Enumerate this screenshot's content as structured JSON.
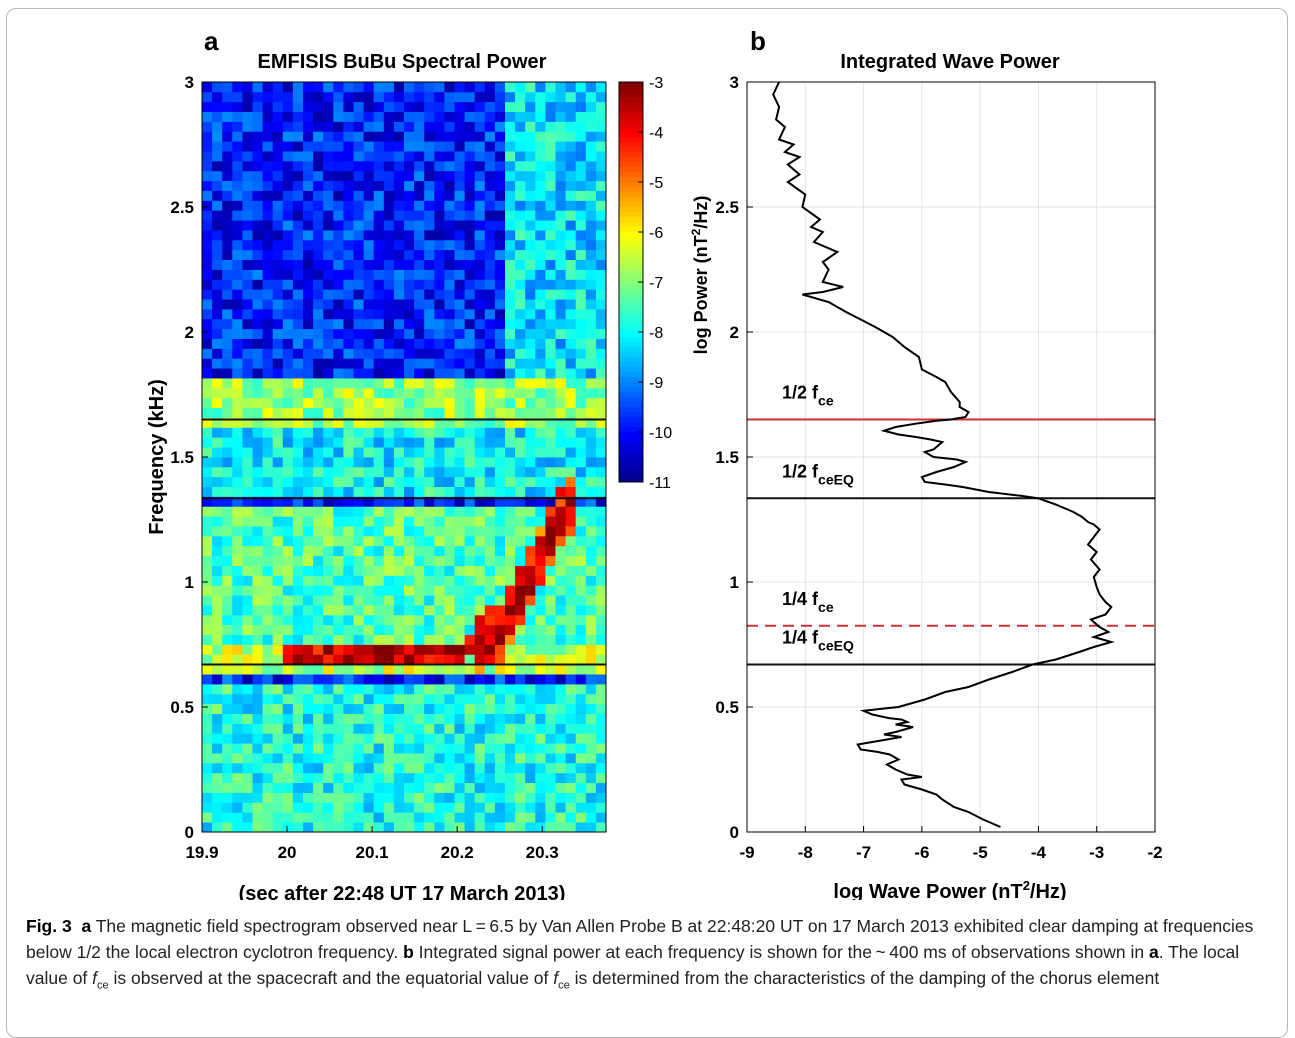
{
  "figure": {
    "panel_a_letter": "a",
    "panel_b_letter": "b"
  },
  "chart_data": [
    {
      "type": "heatmap",
      "title": "EMFISIS BuBu Spectral Power",
      "xlabel": "(sec after 22:48 UT  17 March 2013)",
      "ylabel": "Frequency (kHz)",
      "xlim": [
        19.9,
        20.375
      ],
      "ylim": [
        0,
        3
      ],
      "x_ticks": [
        "19.9",
        "20",
        "20.1",
        "20.2",
        "20.3"
      ],
      "y_ticks": [
        "0",
        "0.5",
        "1",
        "1.5",
        "2",
        "2.5",
        "3"
      ],
      "colorbar": {
        "range": [
          -11,
          -3
        ],
        "ticks": [
          "-3",
          "-4",
          "-5",
          "-6",
          "-7",
          "-8",
          "-9",
          "-10",
          "-11"
        ],
        "colormap": "jet"
      },
      "horizontal_lines_khz": [
        1.65,
        1.335,
        0.67
      ],
      "horizontal_line_color": "#111111",
      "features": [
        {
          "type": "background",
          "freq_khz": [
            1.8,
            3.0
          ],
          "log_power": -9.8
        },
        {
          "type": "band",
          "freq_khz": [
            1.6,
            1.9
          ],
          "log_power": -6.8
        },
        {
          "type": "band",
          "freq_khz": [
            1.35,
            1.6
          ],
          "log_power": -8.0
        },
        {
          "type": "band",
          "freq_khz": [
            0.75,
            1.3
          ],
          "log_power": -7.4
        },
        {
          "type": "band",
          "freq_khz": [
            0.62,
            0.75
          ],
          "log_power": -6.5
        },
        {
          "type": "band",
          "freq_khz": [
            0.0,
            0.6
          ],
          "log_power": -7.8
        },
        {
          "type": "chorus_element",
          "log_power": -3.3,
          "path": [
            [
              20.0,
              0.7
            ],
            [
              20.2,
              0.72
            ],
            [
              20.25,
              0.8
            ],
            [
              20.28,
              0.98
            ],
            [
              20.31,
              1.2
            ],
            [
              20.34,
              1.35
            ]
          ]
        }
      ]
    },
    {
      "type": "line",
      "title": "Integrated Wave Power",
      "xlabel": "log Wave Power (nT",
      "xlabel_sup": "2",
      "xlabel_end": "/Hz)",
      "ylabel": "log Power (nT",
      "ylabel_sup": "2",
      "ylabel_end": "/Hz)",
      "xlim": [
        -9,
        -2
      ],
      "ylim": [
        0,
        3
      ],
      "x_ticks": [
        "-9",
        "-8",
        "-7",
        "-6",
        "-5",
        "-4",
        "-3",
        "-2"
      ],
      "y_ticks": [
        "0",
        "0.5",
        "1",
        "1.5",
        "2",
        "2.5",
        "3"
      ],
      "grid": true,
      "series": [
        {
          "color": "#000000",
          "points": [
            [
              -8.45,
              3.0
            ],
            [
              -8.55,
              2.95
            ],
            [
              -8.45,
              2.9
            ],
            [
              -8.5,
              2.85
            ],
            [
              -8.35,
              2.82
            ],
            [
              -8.45,
              2.77
            ],
            [
              -8.2,
              2.75
            ],
            [
              -8.35,
              2.72
            ],
            [
              -8.1,
              2.7
            ],
            [
              -8.3,
              2.67
            ],
            [
              -8.1,
              2.63
            ],
            [
              -8.3,
              2.6
            ],
            [
              -8.0,
              2.55
            ],
            [
              -8.05,
              2.5
            ],
            [
              -7.75,
              2.45
            ],
            [
              -7.9,
              2.42
            ],
            [
              -7.7,
              2.4
            ],
            [
              -7.85,
              2.36
            ],
            [
              -7.45,
              2.32
            ],
            [
              -7.7,
              2.28
            ],
            [
              -7.6,
              2.25
            ],
            [
              -7.7,
              2.2
            ],
            [
              -7.35,
              2.18
            ],
            [
              -7.7,
              2.16
            ],
            [
              -8.05,
              2.15
            ],
            [
              -7.6,
              2.12
            ],
            [
              -7.3,
              2.08
            ],
            [
              -7.05,
              2.05
            ],
            [
              -6.8,
              2.02
            ],
            [
              -6.5,
              1.98
            ],
            [
              -6.3,
              1.94
            ],
            [
              -6.05,
              1.9
            ],
            [
              -6.0,
              1.85
            ],
            [
              -5.75,
              1.82
            ],
            [
              -5.6,
              1.8
            ],
            [
              -5.5,
              1.76
            ],
            [
              -5.35,
              1.72
            ],
            [
              -5.35,
              1.7
            ],
            [
              -5.2,
              1.68
            ],
            [
              -5.25,
              1.66
            ],
            [
              -5.5,
              1.65
            ],
            [
              -5.75,
              1.645
            ],
            [
              -6.05,
              1.635
            ],
            [
              -6.45,
              1.62
            ],
            [
              -6.65,
              1.605
            ],
            [
              -6.4,
              1.59
            ],
            [
              -6.1,
              1.58
            ],
            [
              -5.85,
              1.57
            ],
            [
              -5.65,
              1.56
            ],
            [
              -5.8,
              1.53
            ],
            [
              -5.95,
              1.52
            ],
            [
              -5.8,
              1.5
            ],
            [
              -5.4,
              1.49
            ],
            [
              -5.25,
              1.48
            ],
            [
              -5.45,
              1.46
            ],
            [
              -5.75,
              1.44
            ],
            [
              -6.0,
              1.42
            ],
            [
              -5.95,
              1.4
            ],
            [
              -5.6,
              1.39
            ],
            [
              -5.3,
              1.38
            ],
            [
              -4.85,
              1.36
            ],
            [
              -4.3,
              1.345
            ],
            [
              -4.0,
              1.335
            ],
            [
              -3.7,
              1.31
            ],
            [
              -3.4,
              1.28
            ],
            [
              -3.25,
              1.26
            ],
            [
              -3.15,
              1.24
            ],
            [
              -3.05,
              1.23
            ],
            [
              -2.95,
              1.21
            ],
            [
              -3.05,
              1.18
            ],
            [
              -3.15,
              1.15
            ],
            [
              -3.0,
              1.12
            ],
            [
              -3.1,
              1.09
            ],
            [
              -2.95,
              1.05
            ],
            [
              -3.05,
              1.02
            ],
            [
              -3.0,
              0.98
            ],
            [
              -2.95,
              0.95
            ],
            [
              -2.85,
              0.92
            ],
            [
              -2.75,
              0.9
            ],
            [
              -2.85,
              0.87
            ],
            [
              -3.1,
              0.85
            ],
            [
              -2.95,
              0.82
            ],
            [
              -2.8,
              0.8
            ],
            [
              -3.05,
              0.78
            ],
            [
              -2.75,
              0.76
            ],
            [
              -3.05,
              0.74
            ],
            [
              -3.3,
              0.72
            ],
            [
              -3.7,
              0.69
            ],
            [
              -4.1,
              0.67
            ],
            [
              -4.45,
              0.64
            ],
            [
              -4.85,
              0.61
            ],
            [
              -5.2,
              0.58
            ],
            [
              -5.6,
              0.56
            ],
            [
              -5.95,
              0.53
            ],
            [
              -6.4,
              0.5
            ],
            [
              -6.8,
              0.49
            ],
            [
              -7.0,
              0.485
            ],
            [
              -6.85,
              0.47
            ],
            [
              -6.55,
              0.455
            ],
            [
              -6.35,
              0.45
            ],
            [
              -6.25,
              0.44
            ],
            [
              -6.45,
              0.43
            ],
            [
              -6.15,
              0.42
            ],
            [
              -6.45,
              0.4
            ],
            [
              -6.65,
              0.39
            ],
            [
              -6.35,
              0.38
            ],
            [
              -6.85,
              0.36
            ],
            [
              -7.1,
              0.35
            ],
            [
              -7.05,
              0.33
            ],
            [
              -6.75,
              0.32
            ],
            [
              -6.55,
              0.31
            ],
            [
              -6.4,
              0.29
            ],
            [
              -6.6,
              0.27
            ],
            [
              -6.45,
              0.25
            ],
            [
              -6.25,
              0.23
            ],
            [
              -6.0,
              0.22
            ],
            [
              -6.35,
              0.21
            ],
            [
              -6.3,
              0.19
            ],
            [
              -6.0,
              0.17
            ],
            [
              -5.75,
              0.15
            ],
            [
              -5.65,
              0.13
            ],
            [
              -5.45,
              0.1
            ],
            [
              -5.2,
              0.08
            ],
            [
              -4.95,
              0.05
            ],
            [
              -4.75,
              0.03
            ],
            [
              -4.65,
              0.02
            ]
          ]
        }
      ],
      "horizontal_lines": [
        {
          "y": 1.65,
          "color": "#c83232",
          "style": "solid",
          "label": "1/2 f",
          "sub": "ce"
        },
        {
          "y": 1.335,
          "color": "#111111",
          "style": "solid",
          "label": "1/2 f",
          "sub": "ceEQ"
        },
        {
          "y": 0.825,
          "color": "#c83232",
          "style": "dashed",
          "label": "1/4 f",
          "sub": "ce"
        },
        {
          "y": 0.67,
          "color": "#111111",
          "style": "solid",
          "label": "1/4 f",
          "sub": "ceEQ"
        }
      ]
    }
  ],
  "caption": {
    "fig_label": "Fig. 3",
    "a": "a",
    "t1": " The magnetic field spectrogram observed near L = 6.5 by Van Allen Probe B at 22:48:20 UT on 17 March 2013 exhibited clear damping at frequencies below 1/2 the local electron cyclotron frequency. ",
    "b": "b",
    "t2": " Integrated signal power at each frequency is shown for the ~ 400 ms of observations shown in ",
    "a2": "a",
    "t3": ". The local value of ",
    "f1": "f",
    "f1sub": "ce",
    "t4": " is observed at the spacecraft and the equatorial value of ",
    "f2": "f",
    "f2sub": "ce",
    "t5": " is determined from the characteristics of the damping of the chorus element"
  }
}
